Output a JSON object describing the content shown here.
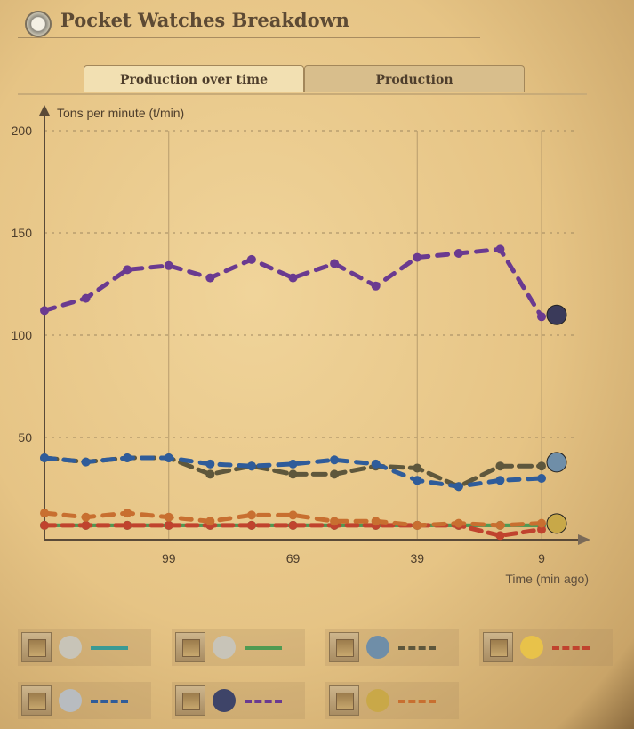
{
  "header": {
    "title": "Pocket Watches Breakdown",
    "icon": "pocket-watch-icon"
  },
  "tabs": [
    {
      "label": "Production over time",
      "active": true
    },
    {
      "label": "Production",
      "active": false
    }
  ],
  "chart_data": {
    "type": "line",
    "ylabel": "Tons per minute (t/min)",
    "xlabel": "Time (min ago)",
    "ylim": [
      0,
      200
    ],
    "yticks": [
      50,
      100,
      150,
      200
    ],
    "xticks": [
      99,
      69,
      39,
      9
    ],
    "x_reversed": true,
    "grid": true,
    "x": [
      129,
      119,
      109,
      99,
      89,
      79,
      69,
      59,
      49,
      39,
      29,
      19,
      9
    ],
    "series": [
      {
        "item": "pocket-watch-sink",
        "color": "#3a9a94",
        "dash": "solid",
        "values": [
          7,
          7,
          7,
          7,
          7,
          7,
          7,
          7,
          7,
          7,
          7,
          7,
          7
        ]
      },
      {
        "item": "pocket-watch-production",
        "color": "#4f9a52",
        "dash": "solid",
        "values": [
          7,
          7,
          7,
          7,
          7,
          7,
          7,
          7,
          7,
          7,
          7,
          7,
          7
        ]
      },
      {
        "item": "steel-plate",
        "color": "#5e573c",
        "dash": "long-dash",
        "values": [
          40,
          38,
          40,
          40,
          32,
          36,
          32,
          32,
          36,
          35,
          26,
          36,
          36
        ]
      },
      {
        "item": "gold-bar",
        "color": "#c0432e",
        "dash": "dash",
        "values": [
          7,
          7,
          7,
          7,
          7,
          7,
          7,
          7,
          7,
          7,
          7,
          2,
          5
        ]
      },
      {
        "item": "raw-ore",
        "color": "#2f5c9a",
        "dash": "dot-dash",
        "values": [
          40,
          38,
          40,
          40,
          37,
          36,
          37,
          39,
          37,
          29,
          26,
          29,
          30
        ]
      },
      {
        "item": "coal",
        "color": "#6a3a90",
        "dash": "dot-dash",
        "values": [
          112,
          118,
          132,
          134,
          128,
          137,
          128,
          135,
          124,
          138,
          140,
          142,
          109
        ]
      },
      {
        "item": "gold-ore",
        "color": "#c86f30",
        "dash": "dot-dash",
        "values": [
          13,
          11,
          13,
          11,
          9,
          12,
          12,
          9,
          9,
          7,
          8,
          7,
          8
        ]
      }
    ]
  },
  "legend": [
    {
      "icon": "pocket-watch-sink-icon",
      "checked": false
    },
    {
      "icon": "pocket-watch-gear-icon",
      "checked": false
    },
    {
      "icon": "steel-plate-icon",
      "checked": false
    },
    {
      "icon": "gold-bar-icon",
      "checked": false
    },
    {
      "icon": "raw-ore-icon",
      "checked": false
    },
    {
      "icon": "coal-icon",
      "checked": false
    },
    {
      "icon": "gold-ore-icon",
      "checked": false
    }
  ]
}
